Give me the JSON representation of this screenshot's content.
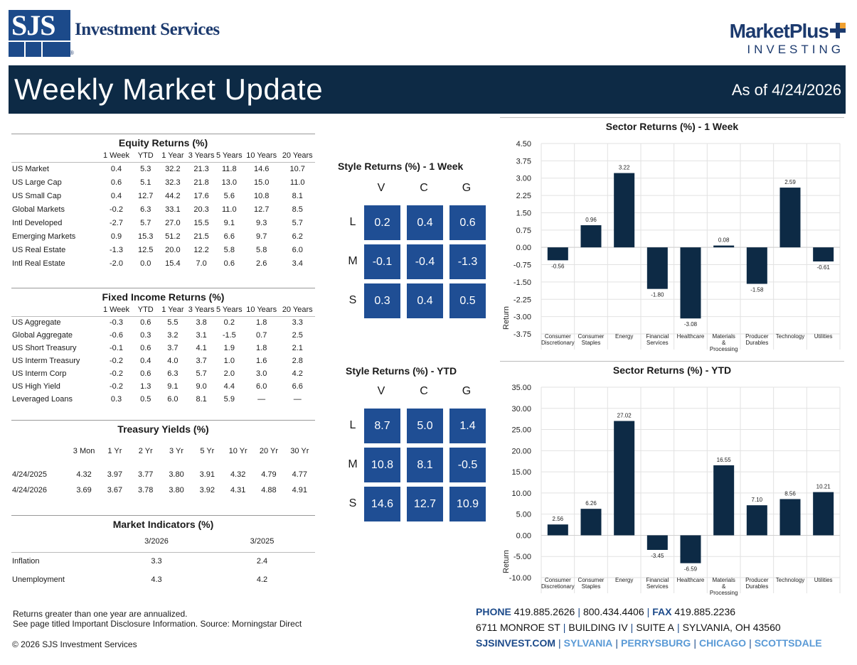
{
  "header": {
    "brand_abbr": "SJS",
    "brand_name": "Investment Services",
    "brand_reg": "®",
    "partner_top": "MarketPlus",
    "partner_bottom": "INVESTING",
    "title": "Weekly Market Update",
    "as_of": "As of 4/24/2026"
  },
  "equity": {
    "title": "Equity Returns (%)",
    "columns": [
      "",
      "1 Week",
      "YTD",
      "1 Year",
      "3 Years",
      "5 Years",
      "10 Years",
      "20 Years"
    ],
    "rows": [
      [
        "US Market",
        "0.4",
        "5.3",
        "32.2",
        "21.3",
        "11.8",
        "14.6",
        "10.7"
      ],
      [
        "US Large Cap",
        "0.6",
        "5.1",
        "32.3",
        "21.8",
        "13.0",
        "15.0",
        "11.0"
      ],
      [
        "US Small Cap",
        "0.4",
        "12.7",
        "44.2",
        "17.6",
        "5.6",
        "10.8",
        "8.1"
      ],
      [
        "Global Markets",
        "-0.2",
        "6.3",
        "33.1",
        "20.3",
        "11.0",
        "12.7",
        "8.5"
      ],
      [
        "Intl Developed",
        "-2.7",
        "5.7",
        "27.0",
        "15.5",
        "9.1",
        "9.3",
        "5.7"
      ],
      [
        "Emerging Markets",
        "0.9",
        "15.3",
        "51.2",
        "21.5",
        "6.6",
        "9.7",
        "6.2"
      ],
      [
        "US Real Estate",
        "-1.3",
        "12.5",
        "20.0",
        "12.2",
        "5.8",
        "5.8",
        "6.0"
      ],
      [
        "Intl Real Estate",
        "-2.0",
        "0.0",
        "15.4",
        "7.0",
        "0.6",
        "2.6",
        "3.4"
      ]
    ]
  },
  "fixed_income": {
    "title": "Fixed Income Returns (%)",
    "columns": [
      "",
      "1 Week",
      "YTD",
      "1 Year",
      "3 Years",
      "5 Years",
      "10 Years",
      "20 Years"
    ],
    "rows": [
      [
        "US Aggregate",
        "-0.3",
        "0.6",
        "5.5",
        "3.8",
        "0.2",
        "1.8",
        "3.3"
      ],
      [
        "Global Aggregate",
        "-0.6",
        "0.3",
        "3.2",
        "3.1",
        "-1.5",
        "0.7",
        "2.5"
      ],
      [
        "US Short Treasury",
        "-0.1",
        "0.6",
        "3.7",
        "4.1",
        "1.9",
        "1.8",
        "2.1"
      ],
      [
        "US Interm Treasury",
        "-0.2",
        "0.4",
        "4.0",
        "3.7",
        "1.0",
        "1.6",
        "2.8"
      ],
      [
        "US Interm Corp",
        "-0.2",
        "0.6",
        "6.3",
        "5.7",
        "2.0",
        "3.0",
        "4.2"
      ],
      [
        "US High Yield",
        "-0.2",
        "1.3",
        "9.1",
        "9.0",
        "4.4",
        "6.0",
        "6.6"
      ],
      [
        "Leveraged Loans",
        "0.3",
        "0.5",
        "6.0",
        "8.1",
        "5.9",
        "—",
        "—"
      ]
    ]
  },
  "treasury": {
    "title": "Treasury Yields (%)",
    "columns": [
      "",
      "3 Mon",
      "1 Yr",
      "2 Yr",
      "3 Yr",
      "5 Yr",
      "10 Yr",
      "20 Yr",
      "30 Yr"
    ],
    "rows": [
      [
        "4/24/2025",
        "4.32",
        "3.97",
        "3.77",
        "3.80",
        "3.91",
        "4.32",
        "4.79",
        "4.77"
      ],
      [
        "4/24/2026",
        "3.69",
        "3.67",
        "3.78",
        "3.80",
        "3.92",
        "4.31",
        "4.88",
        "4.91"
      ]
    ]
  },
  "indicators": {
    "title": "Market Indicators (%)",
    "columns": [
      "",
      "3/2026",
      "3/2025"
    ],
    "rows": [
      [
        "Inflation",
        "3.3",
        "2.4"
      ],
      [
        "Unemployment",
        "4.3",
        "4.2"
      ]
    ]
  },
  "style_week": {
    "title": "Style Returns (%) - 1 Week",
    "cols": [
      "V",
      "C",
      "G"
    ],
    "rows": [
      "L",
      "M",
      "S"
    ],
    "values": [
      [
        "0.2",
        "0.4",
        "0.6"
      ],
      [
        "-0.1",
        "-0.4",
        "-1.3"
      ],
      [
        "0.3",
        "0.4",
        "0.5"
      ]
    ]
  },
  "style_ytd": {
    "title": "Style Returns (%) - YTD",
    "cols": [
      "V",
      "C",
      "G"
    ],
    "rows": [
      "L",
      "M",
      "S"
    ],
    "values": [
      [
        "8.7",
        "5.0",
        "1.4"
      ],
      [
        "10.8",
        "8.1",
        "-0.5"
      ],
      [
        "14.6",
        "12.7",
        "10.9"
      ]
    ]
  },
  "chart_data": [
    {
      "type": "bar",
      "title": "Sector Returns (%) - 1 Week",
      "ylabel": "Return",
      "categories": [
        [
          "Consumer",
          "Discretionary"
        ],
        [
          "Consumer",
          "Staples"
        ],
        [
          "Energy"
        ],
        [
          "Financial",
          "Services"
        ],
        [
          "Healthcare"
        ],
        [
          "Materials",
          "&",
          "Processing"
        ],
        [
          "Producer",
          "Durables"
        ],
        [
          "Technology"
        ],
        [
          "Utilities"
        ]
      ],
      "values": [
        -0.56,
        0.96,
        3.22,
        -1.8,
        -3.08,
        0.08,
        -1.58,
        2.59,
        -0.61
      ],
      "value_labels": [
        "-0.56",
        "0.96",
        "3.22",
        "-1.80",
        "-3.08",
        "0.08",
        "-1.58",
        "2.59",
        "-0.61"
      ],
      "ylim": [
        -3.75,
        4.5
      ],
      "yticks": [
        "4.50",
        "3.75",
        "3.00",
        "2.25",
        "1.50",
        "0.75",
        "0.00",
        "-0.75",
        "-1.50",
        "-2.25",
        "-3.00",
        "-3.75"
      ],
      "bar_color": "#0d2a45"
    },
    {
      "type": "bar",
      "title": "Sector Returns (%) - YTD",
      "ylabel": "Return",
      "categories": [
        [
          "Consumer",
          "Discretionary"
        ],
        [
          "Consumer",
          "Staples"
        ],
        [
          "Energy"
        ],
        [
          "Financial",
          "Services"
        ],
        [
          "Healthcare"
        ],
        [
          "Materials",
          "&",
          "Processing"
        ],
        [
          "Producer",
          "Durables"
        ],
        [
          "Technology"
        ],
        [
          "Utilities"
        ]
      ],
      "values": [
        2.56,
        6.26,
        27.02,
        -3.45,
        -6.59,
        16.55,
        7.1,
        8.56,
        10.21
      ],
      "value_labels": [
        "2.56",
        "6.26",
        "27.02",
        "-3.45",
        "-6.59",
        "16.55",
        "7.10",
        "8.56",
        "10.21"
      ],
      "ylim": [
        -10,
        35
      ],
      "yticks": [
        "35.00",
        "30.00",
        "25.00",
        "20.00",
        "15.00",
        "10.00",
        "5.00",
        "0.00",
        "-5.00",
        "-10.00"
      ],
      "bar_color": "#0d2a45"
    }
  ],
  "footer": {
    "note1": "Returns greater than one year are annualized.",
    "note2": "See page titled Important Disclosure Information. Source: Morningstar Direct",
    "copyright": "© 2026 SJS Investment Services",
    "phone_label": "PHONE",
    "phone": "419.885.2626",
    "tollfree": "800.434.4406",
    "fax_label": "FAX",
    "fax": "419.885.2236",
    "address": [
      "6711 MONROE ST",
      "BUILDING IV",
      "SUITE A",
      "SYLVANIA, OH 43560"
    ],
    "website": "SJSINVEST.COM",
    "offices": [
      "SYLVANIA",
      "PERRYSBURG",
      "CHICAGO",
      "SCOTTSDALE"
    ]
  }
}
